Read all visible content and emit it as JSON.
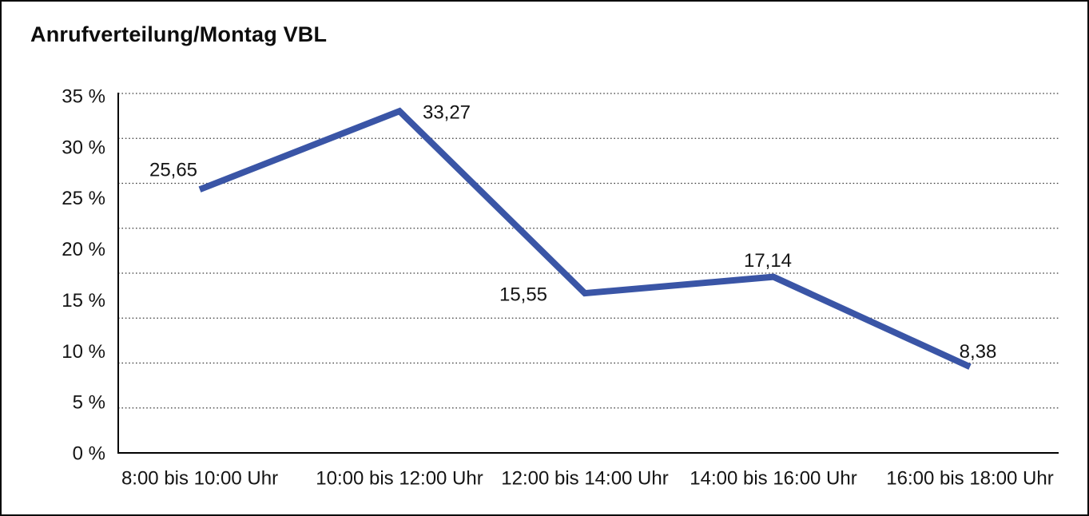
{
  "window": {
    "background_color": "#ffffff",
    "border_color": "#0a0a0a"
  },
  "chart_data": {
    "type": "line",
    "title": "Anrufverteilung/Montag VBL",
    "categories": [
      "8:00 bis 10:00 Uhr",
      "10:00 bis 12:00 Uhr",
      "12:00 bis 14:00 Uhr",
      "14:00 bis 16:00 Uhr",
      "16:00 bis 18:00 Uhr"
    ],
    "values": [
      25.65,
      33.27,
      15.55,
      17.14,
      8.38
    ],
    "value_labels": [
      "25,65",
      "33,27",
      "15,55",
      "17,14",
      "8,38"
    ],
    "y_ticks": [
      "35 %",
      "30 %",
      "25 %",
      "20 %",
      "15 %",
      "10 %",
      "5 %",
      "0 %"
    ],
    "ylim": [
      0,
      35
    ],
    "xlabel": "",
    "ylabel": "",
    "legend": "none",
    "grid": "horizontal dotted, solid baseline",
    "line_color": "#3A55A6",
    "axis_color": "#000000",
    "text_color": "#141414"
  }
}
